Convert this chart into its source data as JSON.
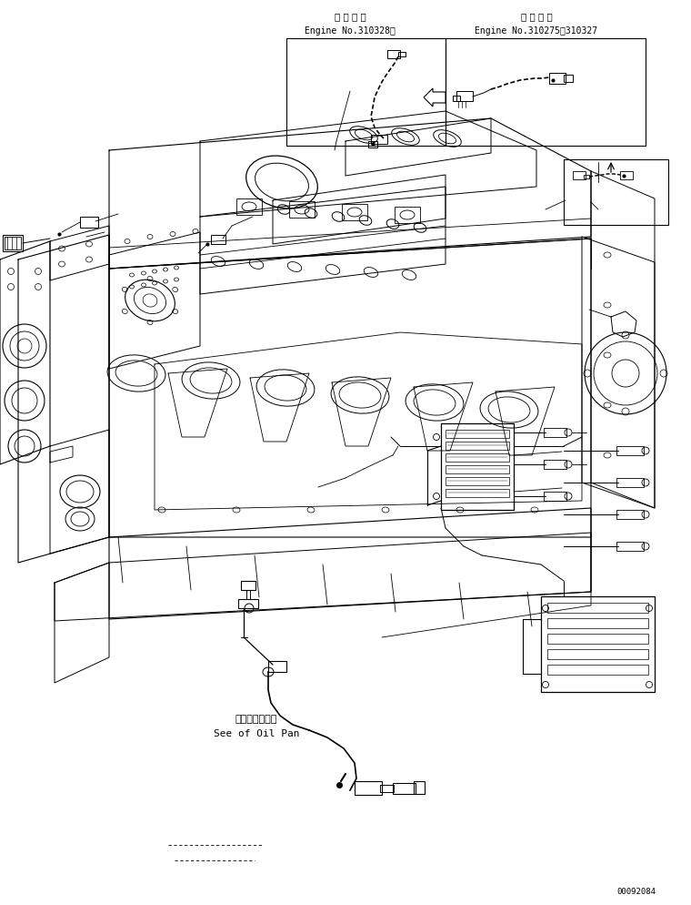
{
  "background_color": "#ffffff",
  "line_color": "#000000",
  "page_width": 7.6,
  "page_height": 9.94,
  "dpi": 100,
  "watermark": "00092084",
  "label1_jp": "適 用 号 機",
  "label1_en": "Engine No.310328～",
  "label2_jp": "適 用 号 機",
  "label2_en": "Engine No.310275～310327",
  "note_jp": "オイルパン参照",
  "note_en": "See of Oil Pan"
}
